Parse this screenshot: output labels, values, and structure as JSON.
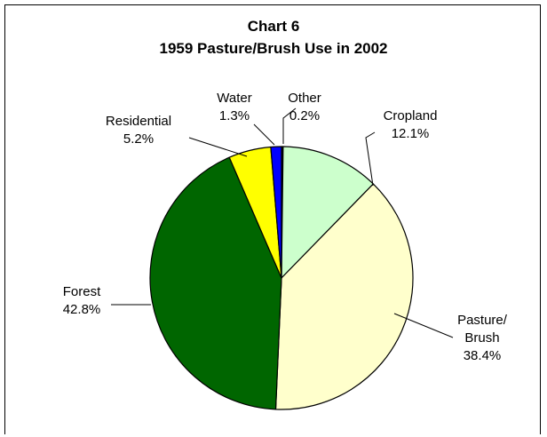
{
  "chart_data": {
    "type": "pie",
    "title": "Chart 6",
    "subtitle": "1959 Pasture/Brush Use in 2002",
    "slices": [
      {
        "label": "Other",
        "value_label": "0.2%",
        "value": 0.2,
        "color": "#0d0d0d"
      },
      {
        "label": "Cropland",
        "value_label": "12.1%",
        "value": 12.1,
        "color": "#ccffcc"
      },
      {
        "label_lines": [
          "Pasture/",
          "Brush"
        ],
        "value_label": "38.4%",
        "value": 38.4,
        "color": "#ffffcc"
      },
      {
        "label": "Forest",
        "value_label": "42.8%",
        "value": 42.8,
        "color": "#006600"
      },
      {
        "label": "Residential",
        "value_label": "5.2%",
        "value": 5.2,
        "color": "#ffff00"
      },
      {
        "label": "Water",
        "value_label": "1.3%",
        "value": 1.3,
        "color": "#0000ff"
      }
    ],
    "legend": "none"
  }
}
